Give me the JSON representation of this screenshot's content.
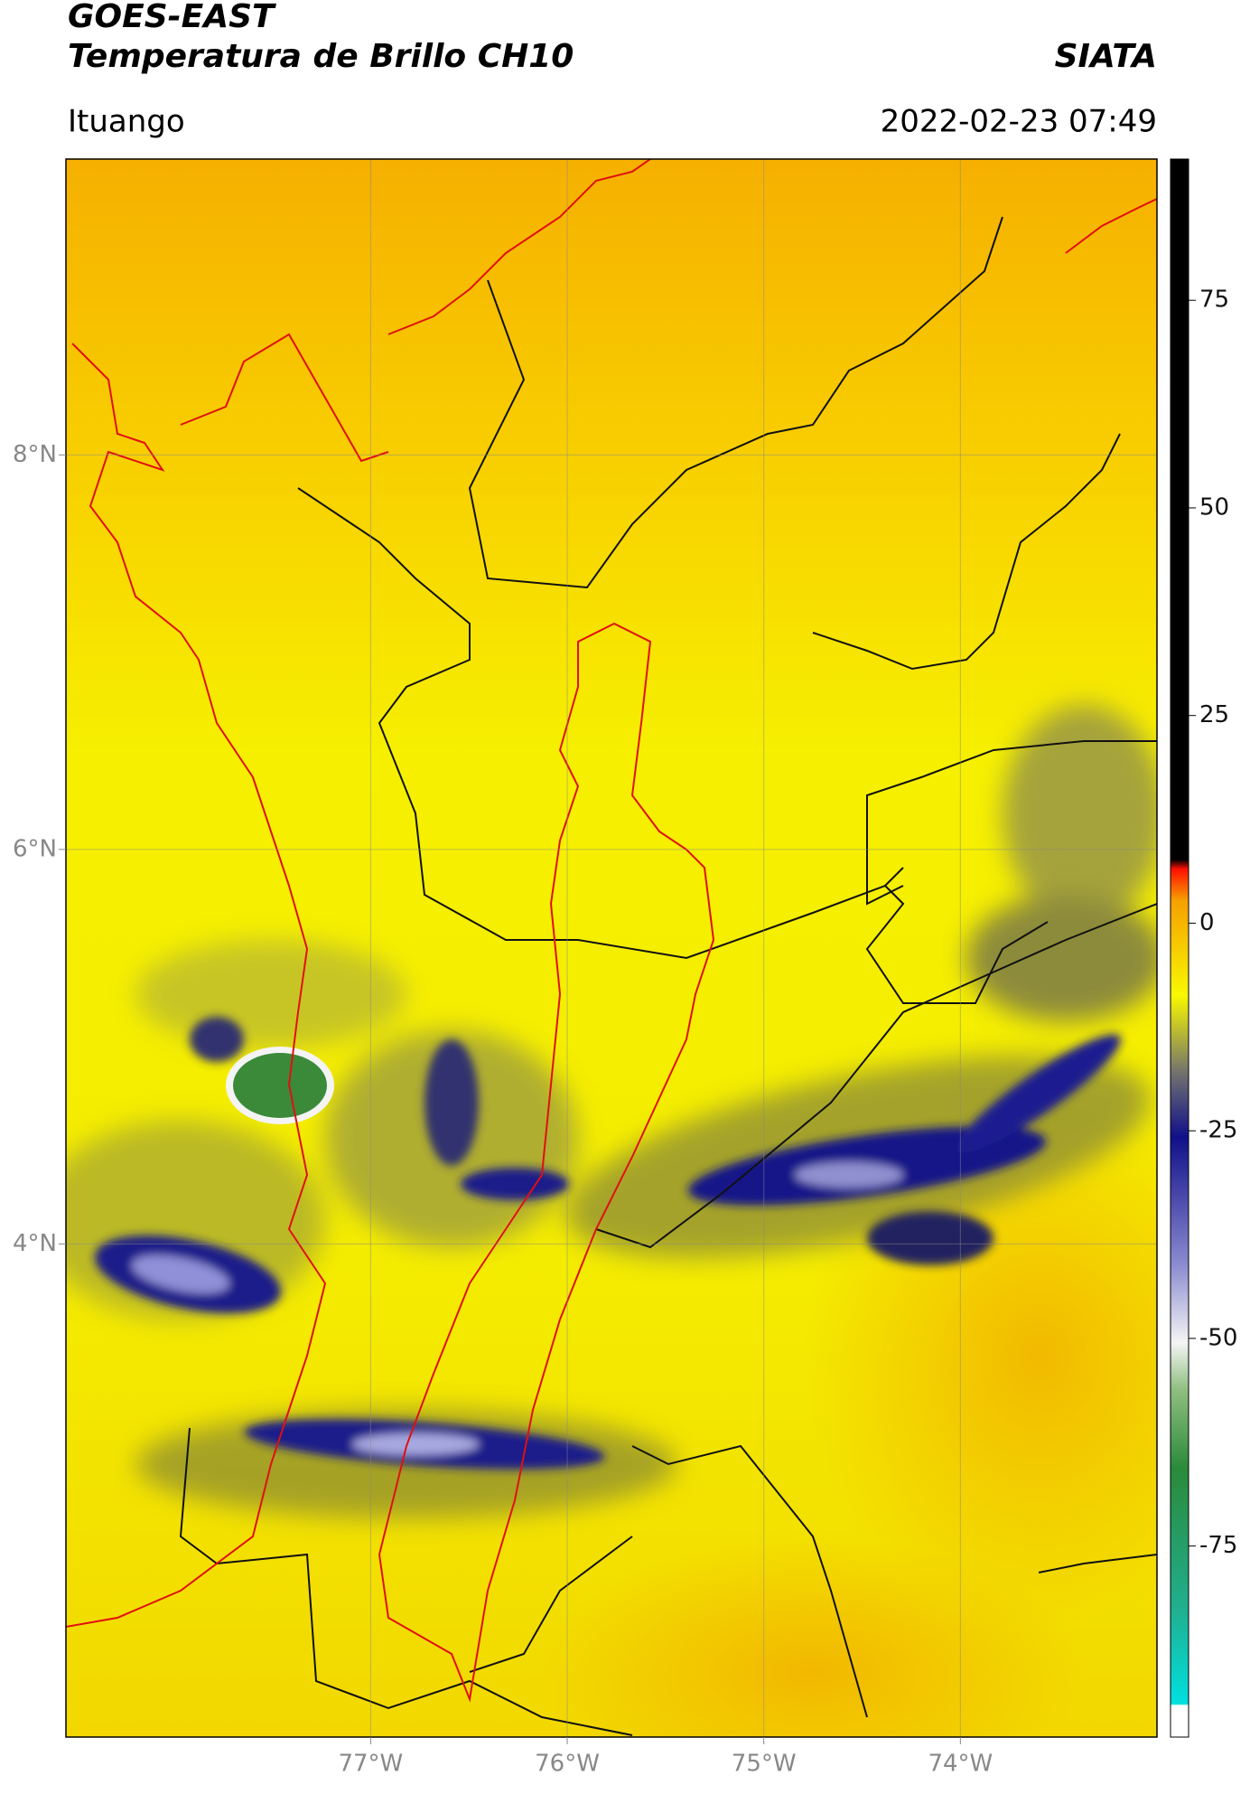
{
  "header": {
    "title": "GOES-EAST",
    "subtitle": "Temperatura de Brillo CH10",
    "source": "SIATA",
    "location": "Ituango",
    "datetime": "2022-02-23 07:49"
  },
  "map": {
    "xlim": [
      -78.55,
      -73.0
    ],
    "ylim": [
      1.5,
      9.5
    ],
    "xticks": [
      {
        "value": -77,
        "label": "77°W"
      },
      {
        "value": -76,
        "label": "76°W"
      },
      {
        "value": -75,
        "label": "75°W"
      },
      {
        "value": -74,
        "label": "74°W"
      }
    ],
    "yticks": [
      {
        "value": 4,
        "label": "4°N"
      },
      {
        "value": 6,
        "label": "6°N"
      },
      {
        "value": 8,
        "label": "8°N"
      }
    ],
    "grid": true
  },
  "colorbar": {
    "lim": [
      -98,
      92
    ],
    "ticks": [
      -75,
      -50,
      -25,
      0,
      25,
      50,
      75
    ]
  }
}
